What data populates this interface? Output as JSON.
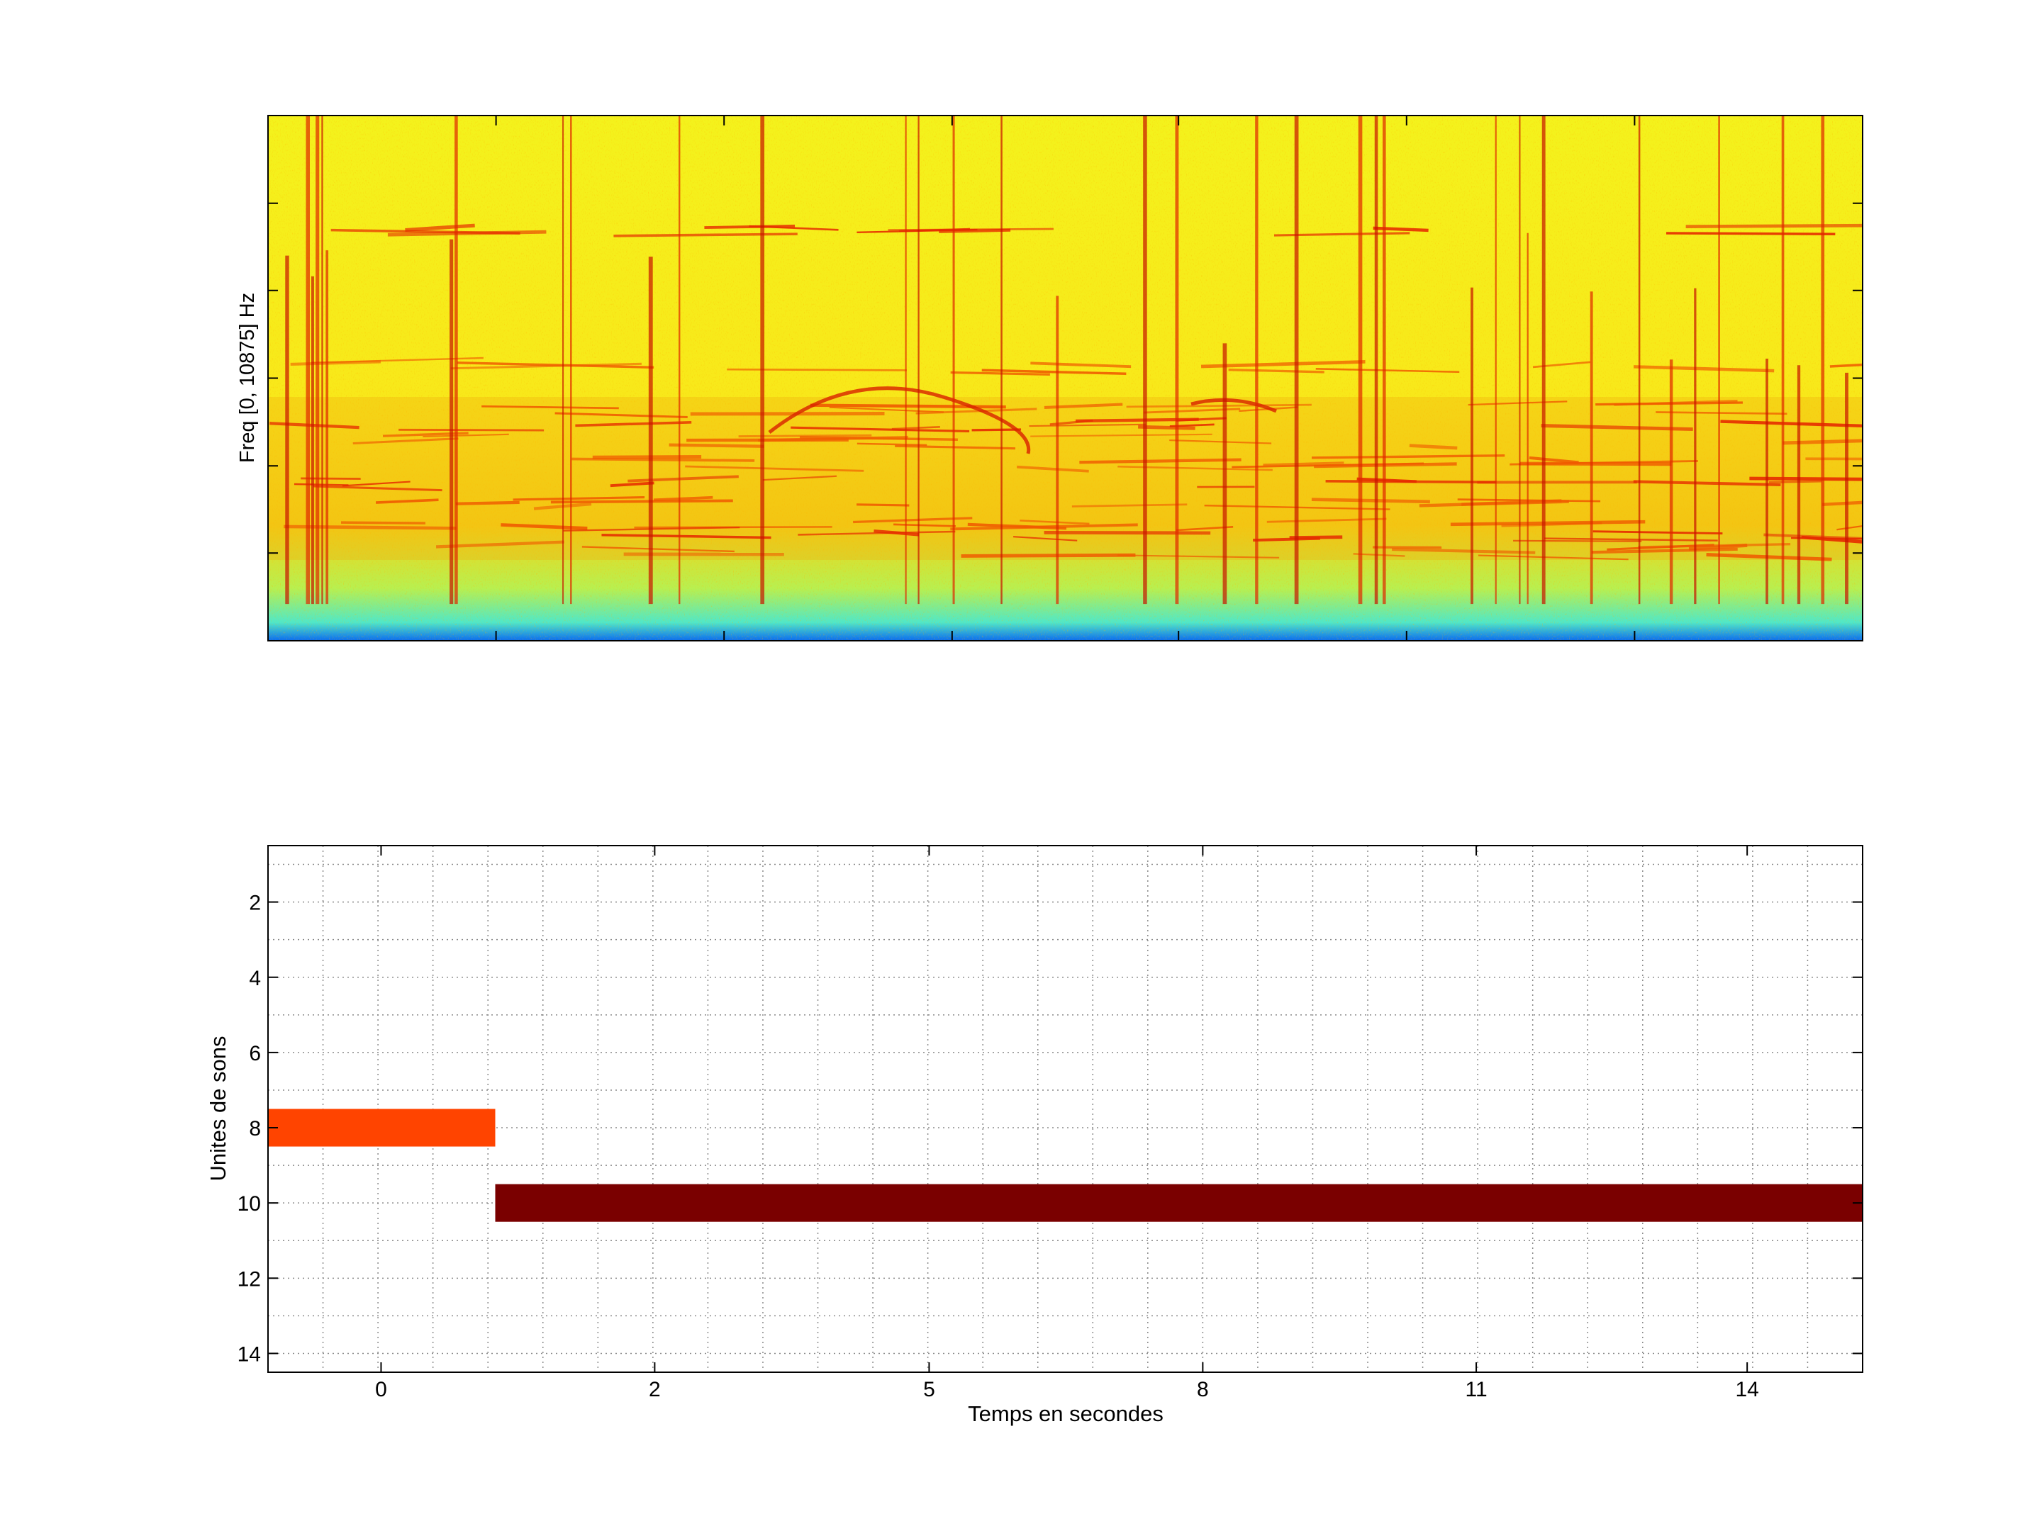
{
  "chart_data": [
    {
      "type": "heatmap",
      "title": "",
      "xlabel": "",
      "ylabel": "Freq [0, 10875] Hz",
      "ylim": [
        0,
        10875
      ],
      "colormap": "jet",
      "tick_labels_shown": false
    },
    {
      "type": "bar",
      "orientation": "horizontal",
      "title": "",
      "xlabel": "Temps en secondes",
      "ylabel": "Unites de sons",
      "xticks": [
        {
          "label": "0",
          "frac": 0.0709
        },
        {
          "label": "2",
          "frac": 0.2425
        },
        {
          "label": "5",
          "frac": 0.4146
        },
        {
          "label": "8",
          "frac": 0.5862
        },
        {
          "label": "11",
          "frac": 0.7577
        },
        {
          "label": "14",
          "frac": 0.9276
        }
      ],
      "yticks": [
        "2",
        "4",
        "6",
        "8",
        "10",
        "12",
        "14"
      ],
      "ylim": [
        0.5,
        14.5
      ],
      "y_reversed": true,
      "grid": true,
      "minor_grid": true,
      "segments": [
        {
          "unit": 8,
          "start_frac": 0.0,
          "end_frac": 0.1425,
          "color": "#ff4400"
        },
        {
          "unit": 10,
          "start_frac": 0.1425,
          "end_frac": 1.0,
          "color": "#7a0000"
        }
      ]
    }
  ]
}
